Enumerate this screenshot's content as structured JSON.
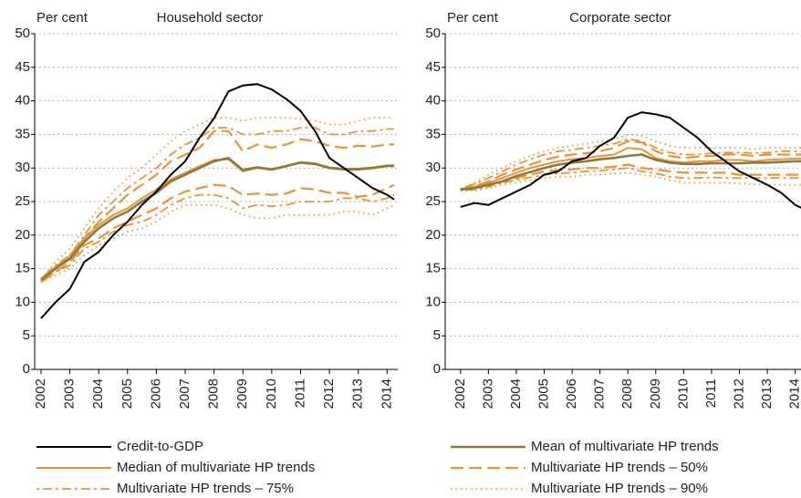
{
  "chart_data": [
    {
      "type": "line",
      "title": "Household sector",
      "ylabel": "Per cent",
      "x": [
        2002,
        2002.5,
        2003,
        2003.5,
        2004,
        2004.5,
        2005,
        2005.5,
        2006,
        2006.5,
        2007,
        2007.5,
        2008,
        2008.5,
        2009,
        2009.5,
        2010,
        2010.5,
        2011,
        2011.5,
        2012,
        2012.5,
        2013,
        2013.5,
        2014,
        2014.25
      ],
      "xlim": [
        2001.78,
        2014.37
      ],
      "xticks": [
        2002,
        2003,
        2004,
        2005,
        2006,
        2007,
        2008,
        2009,
        2010,
        2011,
        2012,
        2013,
        2014
      ],
      "ylim": [
        0,
        50
      ],
      "yticks": [
        0,
        5,
        10,
        15,
        20,
        25,
        30,
        35,
        40,
        45,
        50
      ],
      "grid": true,
      "series": [
        {
          "name": "Credit-to-GDP",
          "color": "#000000",
          "dash": "solid",
          "values": [
            7.6,
            10,
            12,
            16,
            17.5,
            20,
            22,
            24.5,
            26.5,
            29,
            31,
            34.5,
            37.4,
            41.4,
            42.3,
            42.5,
            41.7,
            40.3,
            38.5,
            35.5,
            31.5,
            30,
            28.5,
            27,
            26,
            25.3
          ]
        },
        {
          "name": "Median of multivariate HP trends",
          "color": "#e8923a",
          "dash": "solid",
          "values": [
            13.3,
            15.3,
            16.8,
            19.5,
            21.5,
            23,
            24,
            25.5,
            26.8,
            28.3,
            29.3,
            30.3,
            31.2,
            31.3,
            29.5,
            30,
            29.7,
            30.2,
            30.9,
            30.7,
            30.1,
            29.9,
            29.9,
            30.1,
            30.4,
            30.4
          ]
        },
        {
          "name": "Multivariate HP trends – 75%",
          "color": "#e8923a",
          "dash": "dashdot",
          "upper": [
            13.5,
            15.5,
            17,
            20,
            23,
            25,
            27,
            28.5,
            30,
            32,
            33.5,
            34.5,
            36,
            36,
            35,
            35,
            35.5,
            35.5,
            36,
            36,
            35,
            35,
            35.5,
            35.5,
            35.8,
            35.8
          ],
          "lower": [
            13,
            14.5,
            15.5,
            18,
            19,
            20.5,
            21.5,
            22,
            23,
            24.5,
            25.5,
            26,
            26,
            25.5,
            24,
            24.5,
            24.3,
            24.5,
            25,
            25,
            25,
            25.5,
            25.5,
            25,
            25.5,
            26
          ]
        },
        {
          "name": "Mean of multivariate HP trends",
          "color": "#8b7a3a",
          "dash": "solid",
          "values": [
            13.3,
            15,
            16.5,
            19,
            21,
            22.5,
            23.5,
            25,
            26.3,
            28,
            29,
            30,
            31,
            31.5,
            29.7,
            30.1,
            29.8,
            30.3,
            30.8,
            30.6,
            30,
            29.8,
            29.8,
            30,
            30.3,
            30.3
          ]
        },
        {
          "name": "Multivariate HP trends – 50%",
          "color": "#e8923a",
          "dash": "dashed",
          "upper": [
            13.5,
            15.2,
            17,
            19.5,
            22,
            24,
            26,
            27.5,
            29,
            31,
            32,
            33,
            35.5,
            35.5,
            32.5,
            33.5,
            33,
            33.5,
            34.3,
            34,
            33.3,
            33,
            33.3,
            33.2,
            33.5,
            33.5
          ],
          "lower": [
            13,
            14.5,
            16,
            18.5,
            19.5,
            21,
            22,
            23,
            24,
            25.5,
            26.5,
            27,
            27.5,
            27.3,
            26,
            26.2,
            26,
            26.2,
            27,
            26.8,
            26.3,
            26.3,
            25.7,
            26,
            27,
            27.5
          ]
        },
        {
          "name": "Multivariate HP trends – 90%",
          "color": "#e8923a",
          "dash": "dotted",
          "upper": [
            13.5,
            16,
            18,
            21,
            24,
            26.5,
            28.5,
            30,
            32,
            34,
            35.5,
            36.5,
            37.5,
            37.5,
            37,
            37.5,
            37.5,
            37.5,
            37.3,
            37,
            36.5,
            36.5,
            37,
            37.5,
            37.5,
            37.5
          ],
          "lower": [
            13,
            14,
            15,
            17,
            18.5,
            19.5,
            20.5,
            21,
            22,
            23.5,
            24.5,
            24.5,
            24.5,
            24,
            23,
            22.5,
            22.5,
            23,
            23,
            23,
            23,
            23.5,
            23.5,
            23,
            24,
            24.5
          ]
        }
      ]
    },
    {
      "type": "line",
      "title": "Corporate sector",
      "ylabel": "Per cent",
      "x": [
        2002,
        2002.5,
        2003,
        2003.5,
        2004,
        2004.5,
        2005,
        2005.5,
        2006,
        2006.5,
        2007,
        2007.5,
        2008,
        2008.5,
        2009,
        2009.5,
        2010,
        2010.5,
        2011,
        2011.5,
        2012,
        2012.5,
        2013,
        2013.5,
        2014,
        2014.25
      ],
      "xlim": [
        2001.45,
        2014.6
      ],
      "xticks": [
        2002,
        2003,
        2004,
        2005,
        2006,
        2007,
        2008,
        2009,
        2010,
        2011,
        2012,
        2013,
        2014
      ],
      "ylim": [
        0,
        50
      ],
      "yticks": [
        0,
        5,
        10,
        15,
        20,
        25,
        30,
        35,
        40,
        45,
        50
      ],
      "grid": true,
      "series": [
        {
          "color": "#000000",
          "dash": "solid",
          "values": [
            24.2,
            24.8,
            24.5,
            25.5,
            26.5,
            27.5,
            29,
            29.5,
            31,
            31.5,
            33.3,
            34.5,
            37.5,
            38.3,
            38,
            37.5,
            36,
            34.5,
            32.5,
            31,
            29.5,
            28.5,
            27.5,
            26.3,
            24.5,
            24
          ]
        },
        {
          "color": "#e8923a",
          "dash": "solid",
          "values": [
            26.8,
            27.2,
            27.8,
            28.5,
            29.3,
            30,
            30.5,
            31,
            31.3,
            31.5,
            31.8,
            32,
            33,
            32.8,
            31.5,
            31,
            30.8,
            31,
            31,
            31.2,
            31.2,
            31,
            31.2,
            31.3,
            31.4,
            31.4
          ]
        },
        {
          "color": "#e8923a",
          "dash": "dashdot",
          "upper": [
            26.9,
            27.6,
            28.5,
            29.5,
            30.5,
            31.3,
            32,
            32.5,
            32.7,
            33,
            33.3,
            33.6,
            34.3,
            34,
            33,
            32.3,
            32,
            32,
            32.2,
            32.3,
            32.3,
            32.2,
            32.3,
            32.5,
            32.5,
            32.5
          ],
          "lower": [
            26.7,
            26.8,
            27.2,
            27.8,
            28.2,
            28.6,
            29,
            29.2,
            29.3,
            29.5,
            29.6,
            29.8,
            30,
            29.5,
            29.2,
            28.7,
            28.5,
            28.5,
            28.6,
            28.5,
            28.5,
            28.5,
            28.5,
            28.5,
            28.5,
            28.5
          ]
        },
        {
          "color": "#8b7a3a",
          "dash": "solid",
          "values": [
            26.8,
            27,
            27.5,
            28,
            28.8,
            29.4,
            30,
            30.5,
            30.8,
            31,
            31.3,
            31.5,
            31.8,
            32,
            31.2,
            30.8,
            30.6,
            30.6,
            30.7,
            30.7,
            30.7,
            30.8,
            30.8,
            30.9,
            31,
            31
          ]
        },
        {
          "color": "#e8923a",
          "dash": "dashed",
          "upper": [
            26.8,
            27.3,
            28,
            29,
            29.8,
            30.5,
            31.2,
            31.7,
            32,
            32.2,
            32.5,
            33,
            34,
            33.8,
            32.5,
            31.8,
            31.5,
            31.7,
            31.8,
            32,
            32,
            31.8,
            32,
            32,
            32,
            32
          ],
          "lower": [
            26.8,
            27,
            27.5,
            28,
            28.5,
            29,
            29.5,
            29.7,
            29.8,
            30,
            30,
            30.2,
            30.5,
            30,
            29.8,
            29.5,
            29.3,
            29.3,
            29.3,
            29.3,
            29,
            29,
            29,
            29,
            29,
            29
          ]
        },
        {
          "color": "#e8923a",
          "dash": "dotted",
          "upper": [
            26.9,
            27.8,
            29,
            30,
            31,
            31.8,
            32.5,
            33,
            33.3,
            33.6,
            34,
            34.3,
            35,
            34.8,
            34,
            33.3,
            33,
            33,
            33,
            33,
            33,
            32.8,
            33,
            33,
            33,
            33
          ],
          "lower": [
            26.6,
            26.6,
            27,
            27.5,
            27.8,
            28.2,
            28.5,
            28.7,
            28.7,
            29,
            29,
            29.2,
            29.3,
            29,
            28.7,
            28.2,
            27.8,
            27.8,
            27.8,
            27.8,
            27.7,
            27.6,
            27.5,
            27.5,
            27.5,
            27.5
          ]
        }
      ]
    }
  ]
}
